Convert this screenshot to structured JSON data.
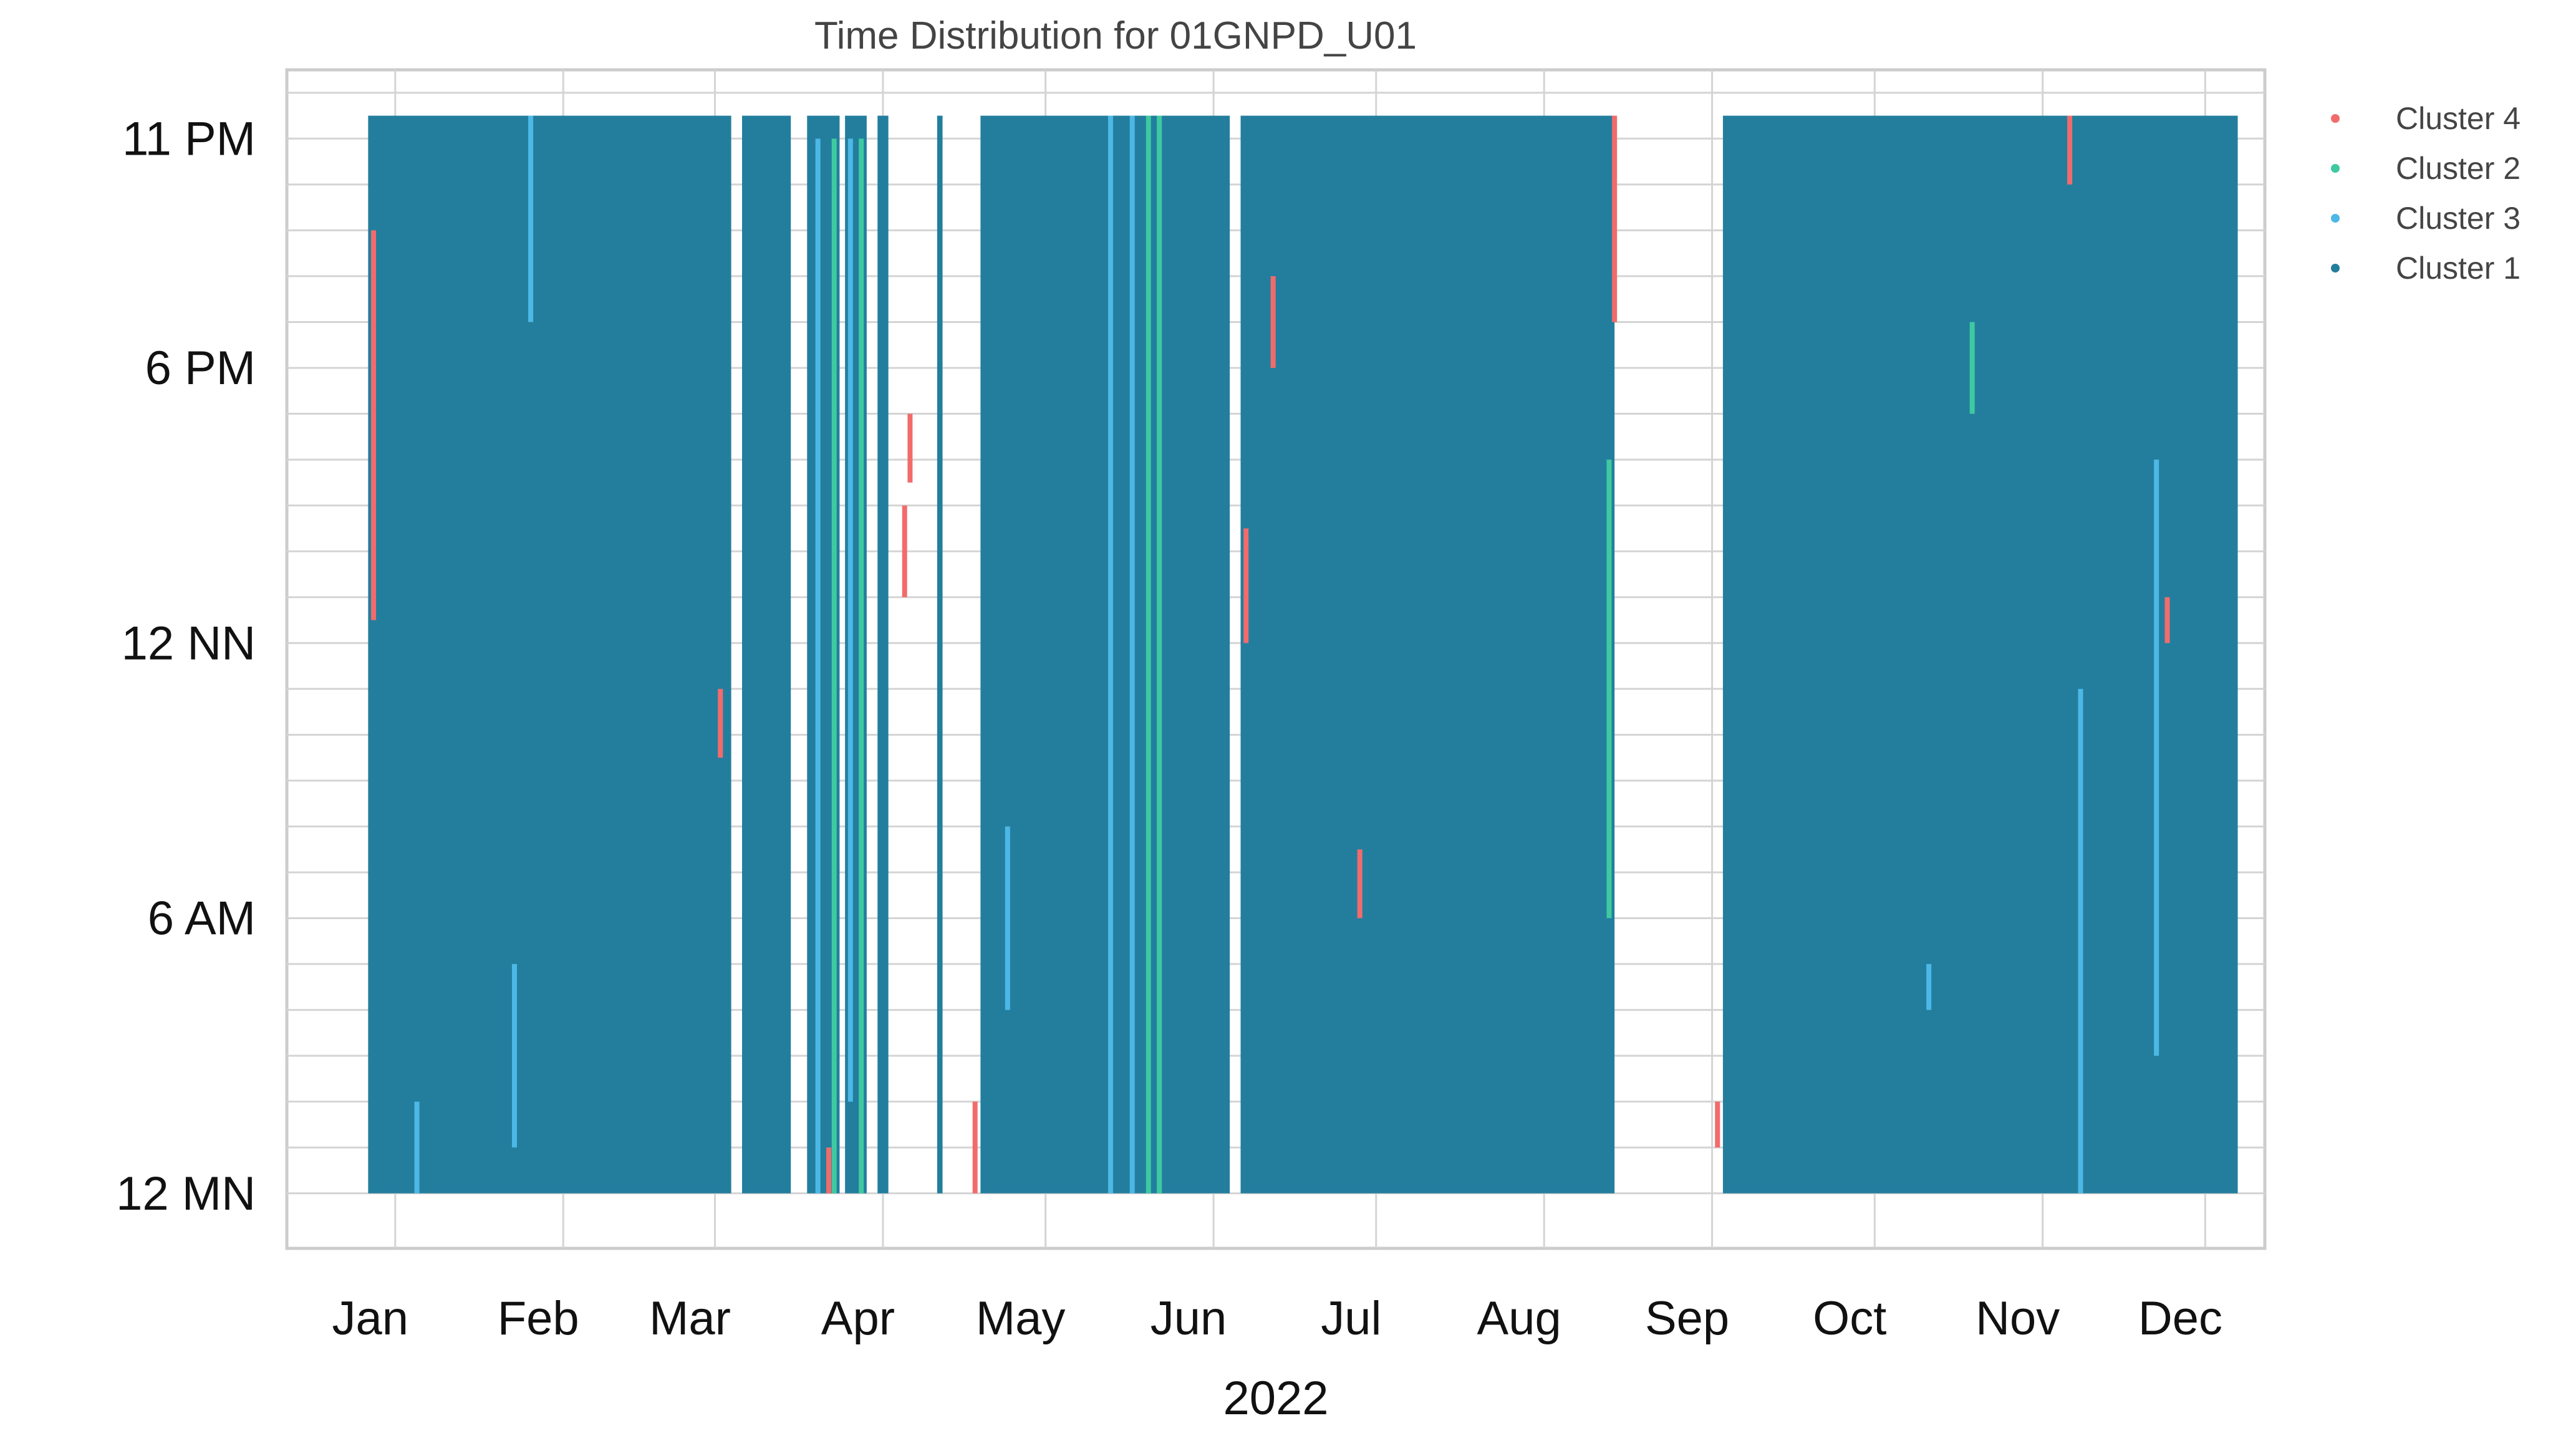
{
  "chart_data": {
    "type": "scatter",
    "title": "Time Distribution for 01GNPD_U01",
    "xlabel": "2022",
    "ylabel": "",
    "x_axis": {
      "unit": "day of year 2022",
      "ticks": [
        {
          "label": "Jan",
          "day": 20
        },
        {
          "label": "Feb",
          "day": 51
        },
        {
          "label": "Mar",
          "day": 79
        },
        {
          "label": "Apr",
          "day": 110
        },
        {
          "label": "May",
          "day": 140
        },
        {
          "label": "Jun",
          "day": 171
        },
        {
          "label": "Jul",
          "day": 201
        },
        {
          "label": "Aug",
          "day": 232
        },
        {
          "label": "Sep",
          "day": 263
        },
        {
          "label": "Oct",
          "day": 293
        },
        {
          "label": "Nov",
          "day": 324
        },
        {
          "label": "Dec",
          "day": 354
        }
      ],
      "range": [
        0,
        365
      ]
    },
    "y_axis": {
      "unit": "hour of day",
      "ticks": [
        {
          "label": "11 PM",
          "hour": 23
        },
        {
          "label": "6 PM",
          "hour": 18
        },
        {
          "label": "12 NN",
          "hour": 12
        },
        {
          "label": "6 AM",
          "hour": 6
        },
        {
          "label": "12 MN",
          "hour": 0
        }
      ],
      "range": [
        -1.2,
        24.5
      ]
    },
    "grid": true,
    "legend_position": "right",
    "series": [
      {
        "name": "Cluster 4",
        "color": "#F26B6B"
      },
      {
        "name": "Cluster 2",
        "color": "#3FC9A0"
      },
      {
        "name": "Cluster 3",
        "color": "#4DB8E6"
      },
      {
        "name": "Cluster 1",
        "color": "#237E9E"
      }
    ],
    "main_coverage": [
      {
        "series": "Cluster 1",
        "day_start": 15,
        "day_end": 82,
        "hour_start": 0,
        "hour_end": 23.5
      },
      {
        "series": "Cluster 1",
        "day_start": 84,
        "day_end": 93,
        "hour_start": 0,
        "hour_end": 23.5
      },
      {
        "series": "Cluster 1",
        "day_start": 96,
        "day_end": 102,
        "hour_start": 0,
        "hour_end": 23.5
      },
      {
        "series": "Cluster 1",
        "day_start": 103,
        "day_end": 107,
        "hour_start": 0,
        "hour_end": 23.5
      },
      {
        "series": "Cluster 1",
        "day_start": 109,
        "day_end": 111,
        "hour_start": 0,
        "hour_end": 23.5
      },
      {
        "series": "Cluster 1",
        "day_start": 120,
        "day_end": 121,
        "hour_start": 0,
        "hour_end": 23.5
      },
      {
        "series": "Cluster 1",
        "day_start": 128,
        "day_end": 174,
        "hour_start": 0,
        "hour_end": 23.5
      },
      {
        "series": "Cluster 1",
        "day_start": 176,
        "day_end": 245,
        "hour_start": 0,
        "hour_end": 23.5
      },
      {
        "series": "Cluster 1",
        "day_start": 265,
        "day_end": 360,
        "hour_start": 0,
        "hour_end": 23.5
      }
    ],
    "highlights": [
      {
        "series": "Cluster 4",
        "day": 16,
        "hour_start": 12.5,
        "hour_end": 21
      },
      {
        "series": "Cluster 4",
        "day": 80,
        "hour_start": 9.5,
        "hour_end": 11
      },
      {
        "series": "Cluster 4",
        "day": 100,
        "hour_start": 0,
        "hour_end": 1
      },
      {
        "series": "Cluster 4",
        "day": 114,
        "hour_start": 13,
        "hour_end": 15
      },
      {
        "series": "Cluster 4",
        "day": 115,
        "hour_start": 15.5,
        "hour_end": 17
      },
      {
        "series": "Cluster 4",
        "day": 127,
        "hour_start": 0,
        "hour_end": 2
      },
      {
        "series": "Cluster 4",
        "day": 177,
        "hour_start": 12,
        "hour_end": 14.5
      },
      {
        "series": "Cluster 4",
        "day": 182,
        "hour_start": 18,
        "hour_end": 20
      },
      {
        "series": "Cluster 4",
        "day": 198,
        "hour_start": 6,
        "hour_end": 7.5
      },
      {
        "series": "Cluster 4",
        "day": 245,
        "hour_start": 19,
        "hour_end": 23.5
      },
      {
        "series": "Cluster 4",
        "day": 264,
        "hour_start": 1,
        "hour_end": 2
      },
      {
        "series": "Cluster 4",
        "day": 329,
        "hour_start": 22,
        "hour_end": 23.5
      },
      {
        "series": "Cluster 4",
        "day": 347,
        "hour_start": 12,
        "hour_end": 13
      },
      {
        "series": "Cluster 3",
        "day": 24,
        "hour_start": 0,
        "hour_end": 2
      },
      {
        "series": "Cluster 3",
        "day": 42,
        "hour_start": 1,
        "hour_end": 5
      },
      {
        "series": "Cluster 3",
        "day": 45,
        "hour_start": 19,
        "hour_end": 23.5
      },
      {
        "series": "Cluster 3",
        "day": 98,
        "hour_start": 0,
        "hour_end": 23
      },
      {
        "series": "Cluster 3",
        "day": 104,
        "hour_start": 2,
        "hour_end": 23
      },
      {
        "series": "Cluster 3",
        "day": 133,
        "hour_start": 4,
        "hour_end": 8
      },
      {
        "series": "Cluster 3",
        "day": 152,
        "hour_start": 0,
        "hour_end": 23.5
      },
      {
        "series": "Cluster 3",
        "day": 156,
        "hour_start": 0,
        "hour_end": 23.5
      },
      {
        "series": "Cluster 3",
        "day": 303,
        "hour_start": 4,
        "hour_end": 5
      },
      {
        "series": "Cluster 3",
        "day": 331,
        "hour_start": 0,
        "hour_end": 11
      },
      {
        "series": "Cluster 3",
        "day": 345,
        "hour_start": 3,
        "hour_end": 16
      },
      {
        "series": "Cluster 2",
        "day": 101,
        "hour_start": 0,
        "hour_end": 23
      },
      {
        "series": "Cluster 2",
        "day": 106,
        "hour_start": 0,
        "hour_end": 23
      },
      {
        "series": "Cluster 2",
        "day": 159,
        "hour_start": 0,
        "hour_end": 23.5
      },
      {
        "series": "Cluster 2",
        "day": 161,
        "hour_start": 0,
        "hour_end": 23.5
      },
      {
        "series": "Cluster 2",
        "day": 311,
        "hour_start": 17,
        "hour_end": 19
      },
      {
        "series": "Cluster 2",
        "day": 244,
        "hour_start": 6,
        "hour_end": 16
      }
    ]
  }
}
